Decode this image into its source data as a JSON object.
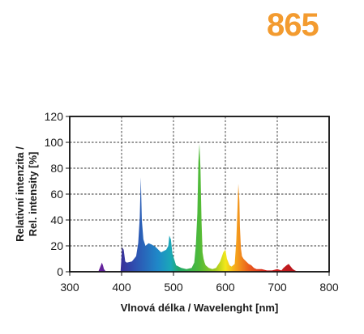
{
  "badge": {
    "text": "865",
    "color": "#f39b2f"
  },
  "chart_data": {
    "type": "area",
    "title": "",
    "xlabel": "Vlnová délka / Wavelenght [nm]",
    "ylabel_lines": [
      "Relativní intenzita /",
      "Rel. intensity [%]"
    ],
    "xlim": [
      300,
      800
    ],
    "ylim": [
      0,
      120
    ],
    "x_ticks": [
      300,
      400,
      500,
      600,
      700,
      800
    ],
    "y_ticks": [
      0,
      20,
      40,
      60,
      80,
      100,
      120
    ],
    "grid": "dashed",
    "fill": "visible-spectrum-colors",
    "series": [
      {
        "x": [
          355,
          358,
          362,
          364,
          366,
          370,
          398,
          401,
          404,
          407,
          410,
          420,
          428,
          432,
          435,
          437,
          439,
          442,
          446,
          452,
          458,
          466,
          476,
          486,
          490,
          492,
          495,
          498,
          505,
          515,
          525,
          535,
          540,
          543,
          546,
          548,
          550,
          552,
          554,
          556,
          558,
          560,
          562,
          565,
          568,
          575,
          582,
          590,
          596,
          600,
          603,
          608,
          612,
          618,
          621,
          623,
          625,
          627,
          628,
          630,
          632,
          635,
          640,
          645,
          650,
          655,
          660,
          670,
          680,
          690,
          700,
          708,
          712,
          718,
          722,
          726,
          730,
          734,
          740,
          760
        ],
        "y": [
          0,
          3,
          7,
          5,
          2,
          0,
          0,
          19,
          17,
          8,
          7,
          8,
          12,
          22,
          42,
          73,
          40,
          25,
          20,
          22,
          21,
          19,
          15,
          17,
          20,
          28,
          25,
          14,
          5,
          3,
          2,
          3,
          7,
          20,
          45,
          85,
          99,
          80,
          40,
          15,
          10,
          7,
          5,
          4,
          3,
          2,
          3,
          8,
          15,
          17,
          10,
          5,
          4,
          6,
          24,
          45,
          68,
          55,
          35,
          18,
          12,
          10,
          8,
          6,
          5,
          3,
          2,
          2,
          1,
          1,
          2,
          1,
          3,
          5,
          6,
          4,
          2,
          1,
          0,
          0
        ]
      }
    ]
  }
}
